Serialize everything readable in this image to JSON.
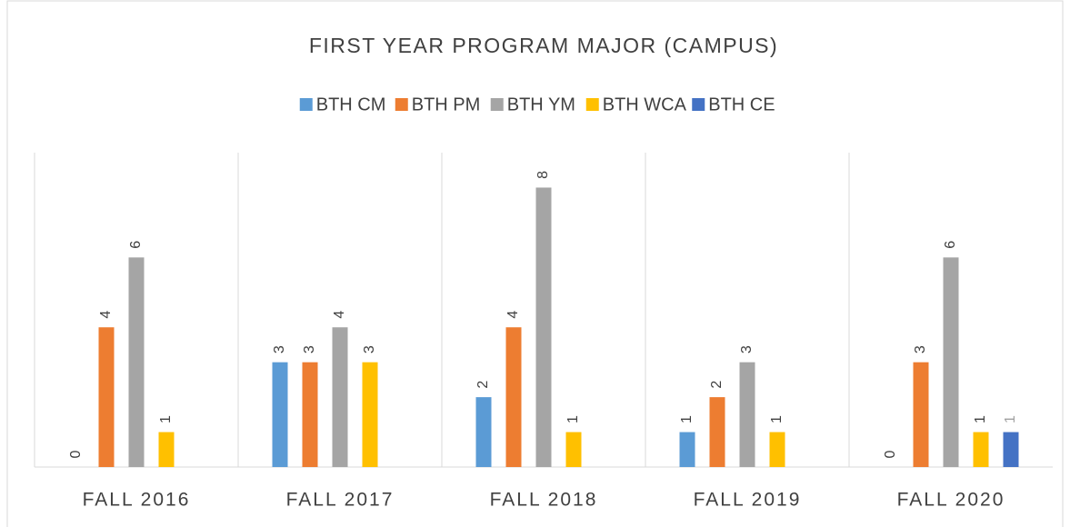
{
  "chart_data": {
    "type": "bar",
    "title": "FIRST YEAR PROGRAM MAJOR (CAMPUS)",
    "categories": [
      "FALL 2016",
      "FALL 2017",
      "FALL 2018",
      "FALL 2019",
      "FALL 2020"
    ],
    "series": [
      {
        "name": "BTH CM",
        "color": "#5b9bd5",
        "values": [
          0,
          3,
          2,
          1,
          0
        ]
      },
      {
        "name": "BTH PM",
        "color": "#ed7d31",
        "values": [
          4,
          3,
          4,
          2,
          3
        ]
      },
      {
        "name": "BTH YM",
        "color": "#a5a5a5",
        "values": [
          6,
          4,
          8,
          3,
          6
        ]
      },
      {
        "name": "BTH WCA",
        "color": "#ffc000",
        "values": [
          1,
          3,
          1,
          1,
          1
        ]
      },
      {
        "name": "BTH CE",
        "color": "#4472c4",
        "values": [
          null,
          null,
          null,
          null,
          1
        ]
      }
    ],
    "ylim": [
      0,
      9
    ],
    "legend": "top"
  }
}
